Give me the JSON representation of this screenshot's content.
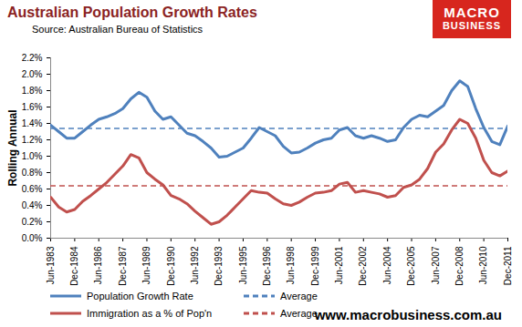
{
  "chart_data": {
    "type": "line",
    "title": "Australian Population Growth Rates",
    "subtitle": "Source: Australian Bureau of Statistics",
    "y_label": "Rolling Annual",
    "categories": [
      "Jun-1983",
      null,
      null,
      "Dec-1984",
      null,
      null,
      "Jun-1986",
      null,
      null,
      "Dec-1987",
      null,
      null,
      "Jun-1989",
      null,
      null,
      "Dec-1990",
      null,
      null,
      "Jun-1992",
      null,
      null,
      "Dec-1993",
      null,
      null,
      "Jun-1995",
      null,
      null,
      "Dec-1996",
      null,
      null,
      "Jun-1998",
      null,
      null,
      "Dec-1999",
      null,
      null,
      "Jun-2001",
      null,
      null,
      "Dec-2002",
      null,
      null,
      "Jun-2004",
      null,
      null,
      "Dec-2005",
      null,
      null,
      "Jun-2007",
      null,
      null,
      "Dec-2008",
      null,
      null,
      "Jun-2010",
      null,
      null,
      "Dec-2011"
    ],
    "series": [
      {
        "name": "Population Growth Rate",
        "color": "#4f81bd",
        "line_style": "solid",
        "values": [
          1.38,
          1.3,
          1.22,
          1.22,
          1.3,
          1.38,
          1.45,
          1.48,
          1.52,
          1.58,
          1.7,
          1.78,
          1.72,
          1.55,
          1.45,
          1.48,
          1.38,
          1.28,
          1.25,
          1.18,
          1.1,
          0.99,
          1.0,
          1.05,
          1.1,
          1.22,
          1.35,
          1.3,
          1.25,
          1.12,
          1.04,
          1.05,
          1.1,
          1.16,
          1.2,
          1.22,
          1.32,
          1.35,
          1.25,
          1.22,
          1.25,
          1.22,
          1.18,
          1.2,
          1.35,
          1.45,
          1.5,
          1.48,
          1.55,
          1.62,
          1.8,
          1.92,
          1.85,
          1.58,
          1.35,
          1.18,
          1.14,
          1.37
        ],
        "average": {
          "name": "Average",
          "value": 1.34,
          "line_style": "dashed"
        }
      },
      {
        "name": "Immigration as a % of Pop'n",
        "color": "#c0504d",
        "line_style": "solid",
        "values": [
          0.5,
          0.38,
          0.32,
          0.35,
          0.45,
          0.52,
          0.6,
          0.68,
          0.78,
          0.88,
          1.02,
          0.98,
          0.8,
          0.72,
          0.65,
          0.52,
          0.48,
          0.42,
          0.33,
          0.25,
          0.17,
          0.2,
          0.28,
          0.38,
          0.48,
          0.58,
          0.56,
          0.55,
          0.48,
          0.42,
          0.4,
          0.44,
          0.5,
          0.55,
          0.56,
          0.58,
          0.66,
          0.68,
          0.56,
          0.58,
          0.56,
          0.54,
          0.5,
          0.52,
          0.62,
          0.65,
          0.72,
          0.85,
          1.05,
          1.15,
          1.32,
          1.45,
          1.4,
          1.22,
          0.95,
          0.8,
          0.76,
          0.82
        ],
        "average": {
          "name": "Average",
          "value": 0.64,
          "line_style": "dashed"
        }
      }
    ],
    "ylim": [
      0,
      2.2
    ],
    "yticks": [
      {
        "value": 0,
        "label": "0.0%"
      },
      {
        "value": 0.2,
        "label": "0.2%"
      },
      {
        "value": 0.4,
        "label": "0.4%"
      },
      {
        "value": 0.6,
        "label": "0.6%"
      },
      {
        "value": 0.8,
        "label": "0.8%"
      },
      {
        "value": 1.0,
        "label": "1.0%"
      },
      {
        "value": 1.2,
        "label": "1.2%"
      },
      {
        "value": 1.4,
        "label": "1.4%"
      },
      {
        "value": 1.6,
        "label": "1.6%"
      },
      {
        "value": 1.8,
        "label": "1.8%"
      },
      {
        "value": 2.0,
        "label": "2.0%"
      },
      {
        "value": 2.2,
        "label": "2.2%"
      }
    ],
    "grid": false,
    "legend": "bottom",
    "annotations": [
      "www.macrobusiness.com.au"
    ],
    "logo": [
      "MACRO",
      "BUSINESS"
    ]
  }
}
